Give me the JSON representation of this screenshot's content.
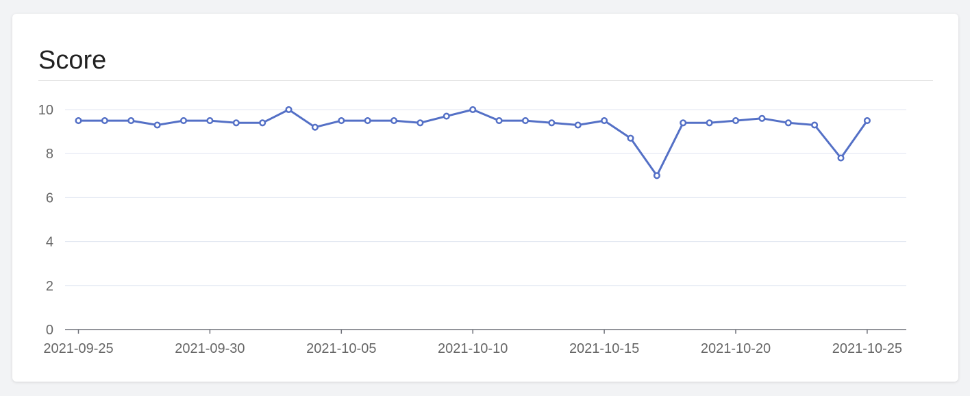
{
  "card": {
    "title": "Score"
  },
  "colors": {
    "line": "#5470c6",
    "grid": "#e0e6f1",
    "axis": "#6e7079",
    "label": "#666666",
    "background": "#ffffff",
    "page_background": "#f2f3f5"
  },
  "chart_data": {
    "type": "line",
    "title": "Score",
    "xlabel": "",
    "ylabel": "",
    "ylim": [
      0,
      10
    ],
    "yticks": [
      0,
      2,
      4,
      6,
      8,
      10
    ],
    "xticks": [
      "2021-09-25",
      "2021-09-30",
      "2021-10-05",
      "2021-10-10",
      "2021-10-15",
      "2021-10-20",
      "2021-10-25"
    ],
    "grid": true,
    "legend": "none",
    "marker": "hollow-circle",
    "x": [
      "2021-09-25",
      "2021-09-26",
      "2021-09-27",
      "2021-09-28",
      "2021-09-29",
      "2021-09-30",
      "2021-10-01",
      "2021-10-02",
      "2021-10-03",
      "2021-10-04",
      "2021-10-05",
      "2021-10-06",
      "2021-10-07",
      "2021-10-08",
      "2021-10-09",
      "2021-10-10",
      "2021-10-11",
      "2021-10-12",
      "2021-10-13",
      "2021-10-14",
      "2021-10-15",
      "2021-10-16",
      "2021-10-17",
      "2021-10-18",
      "2021-10-19",
      "2021-10-20",
      "2021-10-21",
      "2021-10-22",
      "2021-10-23",
      "2021-10-24",
      "2021-10-25"
    ],
    "series": [
      {
        "values": [
          9.5,
          9.5,
          9.5,
          9.3,
          9.5,
          9.5,
          9.4,
          9.4,
          10.0,
          9.2,
          9.5,
          9.5,
          9.5,
          9.4,
          9.7,
          10.0,
          9.5,
          9.5,
          9.4,
          9.3,
          9.5,
          8.7,
          7.0,
          9.4,
          9.4,
          9.5,
          9.6,
          9.4,
          9.3,
          7.8,
          9.5
        ]
      }
    ]
  }
}
